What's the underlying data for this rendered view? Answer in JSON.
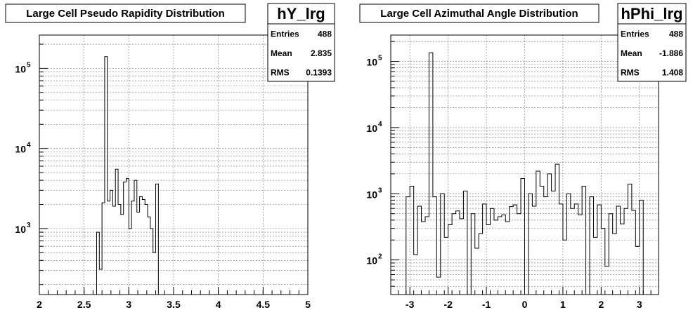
{
  "chart_data": [
    {
      "type": "bar",
      "title": "Large Cell Pseudo Rapidity Distribution",
      "stats": {
        "name": "hY_lrg",
        "rows": [
          {
            "label": "Entries",
            "value": "488"
          },
          {
            "label": "Mean",
            "value": "2.835"
          },
          {
            "label": "RMS",
            "value": "0.1393"
          }
        ]
      },
      "xlim": [
        2,
        5
      ],
      "ylim": [
        150,
        260000
      ],
      "ylog": true,
      "grid": true,
      "xticks": [
        2,
        2.5,
        3,
        3.5,
        4,
        4.5,
        5
      ],
      "xtick_labels": [
        "2",
        "2.5",
        "3",
        "3.5",
        "4",
        "4.5",
        "5"
      ],
      "ytick_values": [
        1000,
        10000,
        100000
      ],
      "ytick_labels": [
        {
          "base": "10",
          "exp": "3"
        },
        {
          "base": "10",
          "exp": "4"
        },
        {
          "base": "10",
          "exp": "5"
        }
      ],
      "bins": {
        "edges": [
          2.64,
          2.67,
          2.7,
          2.73,
          2.76,
          2.79,
          2.82,
          2.85,
          2.88,
          2.91,
          2.94,
          2.97,
          3.0,
          3.03,
          3.06,
          3.09,
          3.12,
          3.15,
          3.18,
          3.21,
          3.24,
          3.27,
          3.3,
          3.33,
          3.36
        ],
        "values": [
          900,
          310,
          2100,
          140000,
          2200,
          3000,
          1900,
          5500,
          2000,
          1500,
          3800,
          4200,
          1000,
          2200,
          4000,
          1600,
          2500,
          2300,
          2000,
          1400,
          1000,
          500,
          3600,
          150
        ]
      }
    },
    {
      "type": "bar",
      "title": "Large Cell Azimuthal Angle Distribution",
      "stats": {
        "name": "hPhi_lrg",
        "rows": [
          {
            "label": "Entries",
            "value": "488"
          },
          {
            "label": "Mean",
            "value": "-1.886"
          },
          {
            "label": "RMS",
            "value": "1.408"
          }
        ]
      },
      "xlim": [
        -3.5,
        3.5
      ],
      "ylim": [
        30,
        250000
      ],
      "ylog": true,
      "grid": true,
      "xticks": [
        -3,
        -2,
        -1,
        0,
        1,
        2,
        3
      ],
      "xtick_labels": [
        "-3",
        "-2",
        "-1",
        "0",
        "1",
        "2",
        "3"
      ],
      "ytick_values": [
        100,
        1000,
        10000,
        100000
      ],
      "ytick_labels": [
        {
          "base": "10",
          "exp": "2"
        },
        {
          "base": "10",
          "exp": "3"
        },
        {
          "base": "10",
          "exp": "4"
        },
        {
          "base": "10",
          "exp": "5"
        }
      ],
      "bins": {
        "edges": [
          -3.1,
          -3.0,
          -2.9,
          -2.8,
          -2.7,
          -2.6,
          -2.5,
          -2.4,
          -2.3,
          -2.2,
          -2.1,
          -2.0,
          -1.9,
          -1.8,
          -1.7,
          -1.6,
          -1.5,
          -1.4,
          -1.3,
          -1.2,
          -1.1,
          -1.0,
          -0.9,
          -0.8,
          -0.7,
          -0.6,
          -0.5,
          -0.4,
          -0.3,
          -0.2,
          -0.1,
          0.0,
          0.1,
          0.2,
          0.3,
          0.4,
          0.5,
          0.6,
          0.7,
          0.8,
          0.9,
          1.0,
          1.1,
          1.2,
          1.3,
          1.4,
          1.5,
          1.6,
          1.7,
          1.8,
          1.9,
          2.0,
          2.1,
          2.2,
          2.3,
          2.4,
          2.5,
          2.6,
          2.7,
          2.8,
          2.9,
          3.0,
          3.1
        ],
        "values": [
          900,
          1300,
          120,
          650,
          380,
          450,
          135000,
          900,
          55,
          1000,
          220,
          340,
          500,
          550,
          420,
          1100,
          30,
          500,
          150,
          250,
          700,
          340,
          600,
          400,
          450,
          480,
          380,
          640,
          680,
          500,
          1700,
          30,
          1000,
          650,
          2200,
          1300,
          900,
          2000,
          1100,
          2800,
          700,
          200,
          1000,
          600,
          700,
          480,
          1300,
          30,
          900,
          220,
          680,
          300,
          80,
          500,
          250,
          650,
          350,
          600,
          1400,
          560,
          160,
          800
        ]
      }
    }
  ]
}
